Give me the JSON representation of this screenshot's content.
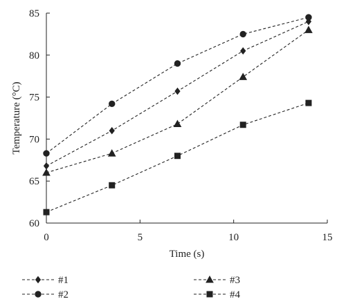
{
  "chart_data": {
    "type": "line",
    "title": "",
    "xlabel": "Time (s)",
    "ylabel": "Temperature (°C)",
    "xlim": [
      0,
      15
    ],
    "ylim": [
      60,
      85
    ],
    "xticks": [
      "0",
      "5",
      "10",
      "15"
    ],
    "yticks": [
      "60",
      "65",
      "70",
      "75",
      "80",
      "85"
    ],
    "grid": false,
    "legend_position": "bottom",
    "line_style": "dashed",
    "line_color": "#222222",
    "series": [
      {
        "name": "#1",
        "marker": "diamond",
        "x": [
          0,
          3.5,
          7,
          10.5,
          14
        ],
        "y": [
          66.8,
          71.0,
          75.7,
          80.5,
          84.0
        ]
      },
      {
        "name": "#2",
        "marker": "circle",
        "x": [
          0,
          3.5,
          7,
          10.5,
          14
        ],
        "y": [
          68.3,
          74.2,
          79.0,
          82.5,
          84.5
        ]
      },
      {
        "name": "#3",
        "marker": "triangle",
        "x": [
          0,
          3.5,
          7,
          10.5,
          14
        ],
        "y": [
          66.0,
          68.3,
          71.8,
          77.4,
          83.0
        ]
      },
      {
        "name": "#4",
        "marker": "square",
        "x": [
          0,
          3.5,
          7,
          10.5,
          14
        ],
        "y": [
          61.3,
          64.5,
          68.0,
          71.7,
          74.3
        ]
      }
    ]
  }
}
